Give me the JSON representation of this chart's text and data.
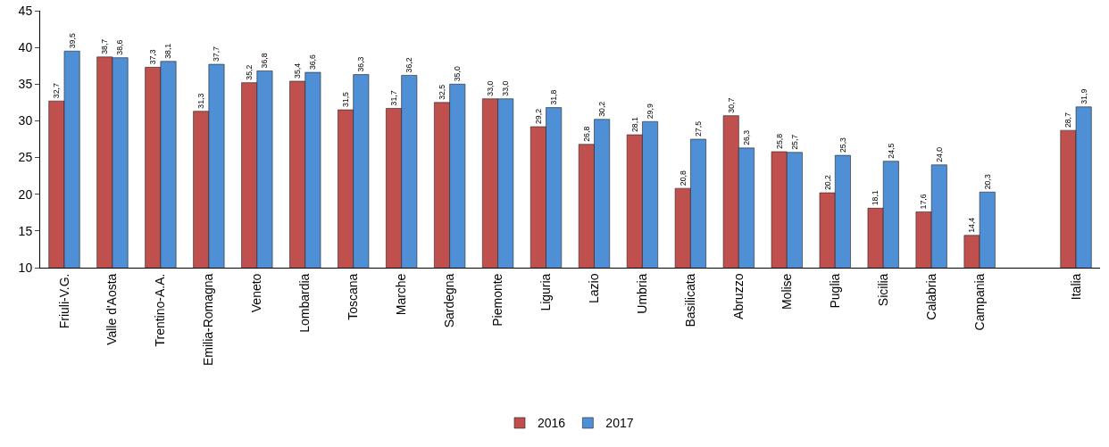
{
  "chart_data": {
    "type": "bar",
    "categories": [
      "Friuli-V.G.",
      "Valle d'Aosta",
      "Trentino-A.A.",
      "Emilia-Romagna",
      "Veneto",
      "Lombardia",
      "Toscana",
      "Marche",
      "Sardegna",
      "Piemonte",
      "Liguria",
      "Lazio",
      "Umbria",
      "Basilicata",
      "Abruzzo",
      "Molise",
      "Puglia",
      "Sicilia",
      "Calabria",
      "Campania",
      null,
      "Italia"
    ],
    "series": [
      {
        "name": "2016",
        "color": "#c0504d",
        "values": [
          32.7,
          38.7,
          37.3,
          31.3,
          35.2,
          35.4,
          31.5,
          31.7,
          32.5,
          33.0,
          29.2,
          26.8,
          28.1,
          20.8,
          30.7,
          25.8,
          20.2,
          18.1,
          17.6,
          14.4,
          null,
          28.7
        ],
        "value_labels": [
          "32,7",
          "38,7",
          "37,3",
          "31,3",
          "35,2",
          "35,4",
          "31,5",
          "31,7",
          "32,5",
          "33,0",
          "29,2",
          "26,8",
          "28,1",
          "20,8",
          "30,7",
          "25,8",
          "20,2",
          "18,1",
          "17,6",
          "14,4",
          null,
          "28,7"
        ]
      },
      {
        "name": "2017",
        "color": "#4f8fd6",
        "values": [
          39.5,
          38.6,
          38.1,
          37.7,
          36.8,
          36.6,
          36.3,
          36.2,
          35.0,
          33.0,
          31.8,
          30.2,
          29.9,
          27.5,
          26.3,
          25.7,
          25.3,
          24.5,
          24.0,
          20.3,
          null,
          31.9
        ],
        "value_labels": [
          "39,5",
          "38,6",
          "38,1",
          "37,7",
          "36,8",
          "36,6",
          "36,3",
          "36,2",
          "35,0",
          "33,0",
          "31,8",
          "30,2",
          "29,9",
          "27,5",
          "26,3",
          "25,7",
          "25,3",
          "24,5",
          "24,0",
          "20,3",
          null,
          "31,9"
        ]
      }
    ],
    "ylim": [
      10,
      45
    ],
    "yticks": [
      10,
      15,
      20,
      25,
      30,
      35,
      40,
      45
    ],
    "grid": false,
    "legend": "bottom"
  }
}
